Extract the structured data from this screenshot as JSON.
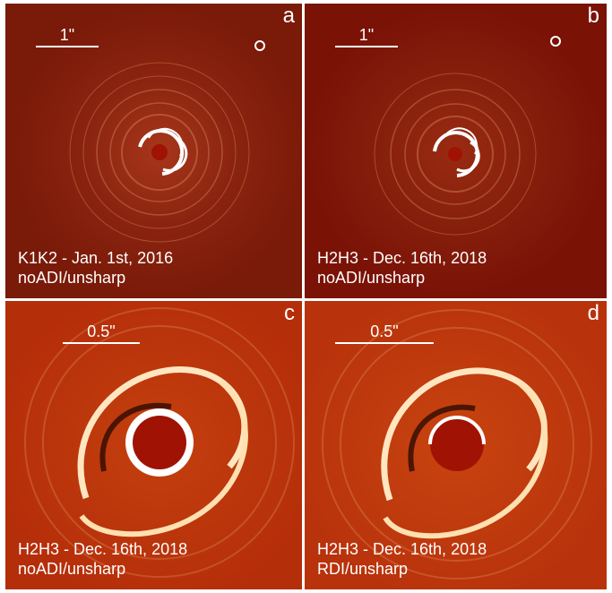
{
  "panels": [
    {
      "id": "a",
      "letter": "a",
      "scale_label": "1\"",
      "caption_line1": "K1K2 - Jan. 1st, 2016",
      "caption_line2": "noADI/unsharp"
    },
    {
      "id": "b",
      "letter": "b",
      "scale_label": "1\"",
      "caption_line1": "H2H3 - Dec. 16th, 2018",
      "caption_line2": "noADI/unsharp"
    },
    {
      "id": "c",
      "letter": "c",
      "scale_label": "0.5\"",
      "caption_line1": "H2H3 - Dec. 16th, 2018",
      "caption_line2": "noADI/unsharp"
    },
    {
      "id": "d",
      "letter": "d",
      "scale_label": "0.5\"",
      "caption_line1": "H2H3 - Dec. 16th, 2018",
      "caption_line2": "RDI/unsharp"
    }
  ],
  "colors": {
    "panel_a_bg": "#7a1a08",
    "panel_b_bg": "#7a1206",
    "panel_c_bg": "#b52e0a",
    "panel_d_bg": "#b8320c",
    "mask": "#a01204",
    "highlight": "#ffffff"
  }
}
